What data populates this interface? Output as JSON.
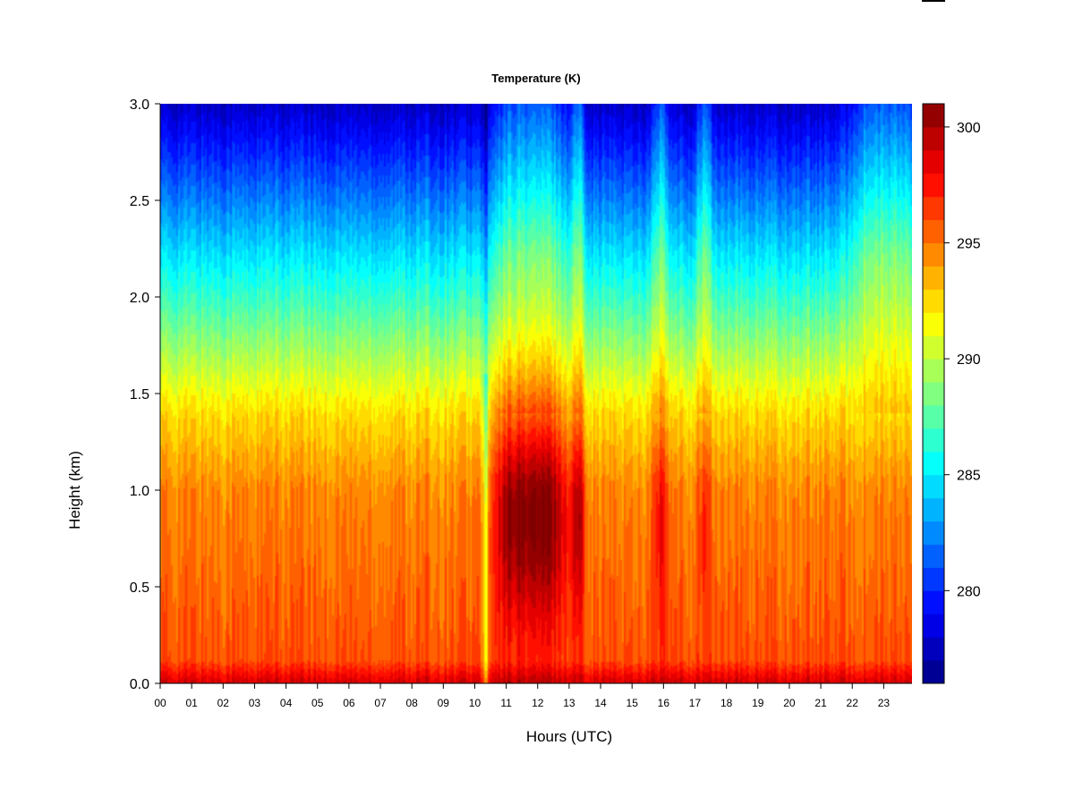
{
  "chart_data": {
    "type": "heatmap",
    "title": "Temperature (K)",
    "xlabel": "Hours (UTC)",
    "ylabel": "Height (km)",
    "x_ticks": [
      "00",
      "01",
      "02",
      "03",
      "04",
      "05",
      "06",
      "07",
      "08",
      "09",
      "10",
      "11",
      "12",
      "13",
      "14",
      "15",
      "16",
      "17",
      "18",
      "19",
      "20",
      "21",
      "22",
      "23"
    ],
    "y_ticks": [
      "0.0",
      "0.5",
      "1.0",
      "1.5",
      "2.0",
      "2.5",
      "3.0"
    ],
    "xlim": [
      0,
      23.9
    ],
    "ylim": [
      0,
      3.0
    ],
    "colorbar": {
      "ticks": [
        "280",
        "285",
        "290",
        "295",
        "300"
      ],
      "range": [
        276,
        301
      ],
      "levels": 25
    },
    "grid": false,
    "color_scale": "jet (dark blue = cold, dark red = warm)",
    "features": [
      {
        "hour": 10.35,
        "effect": "narrow cool column, yellow to the surface"
      },
      {
        "hour_start": 10.9,
        "hour_end": 12.7,
        "height_peak_km": 0.9,
        "temperature_peak_K": 301,
        "effect": "warm plume"
      },
      {
        "hour": 13.3,
        "height_peak_km": 0.9,
        "temperature_peak_K": 299,
        "effect": "warm plume"
      },
      {
        "hour": 15.9,
        "height_peak_km": 0.9,
        "temperature_peak_K": 298,
        "effect": "warm plume"
      },
      {
        "hour": 17.3,
        "height_peak_km": 0.9,
        "temperature_peak_K": 297,
        "effect": "warm plume"
      },
      {
        "hour_start": 22.2,
        "hour_end": 23.9,
        "height_peak_km": 0.7,
        "temperature_peak_K": 295,
        "effect": "warm layer"
      }
    ]
  },
  "colors": {
    "background": "#ffffff",
    "text": "#000000"
  }
}
